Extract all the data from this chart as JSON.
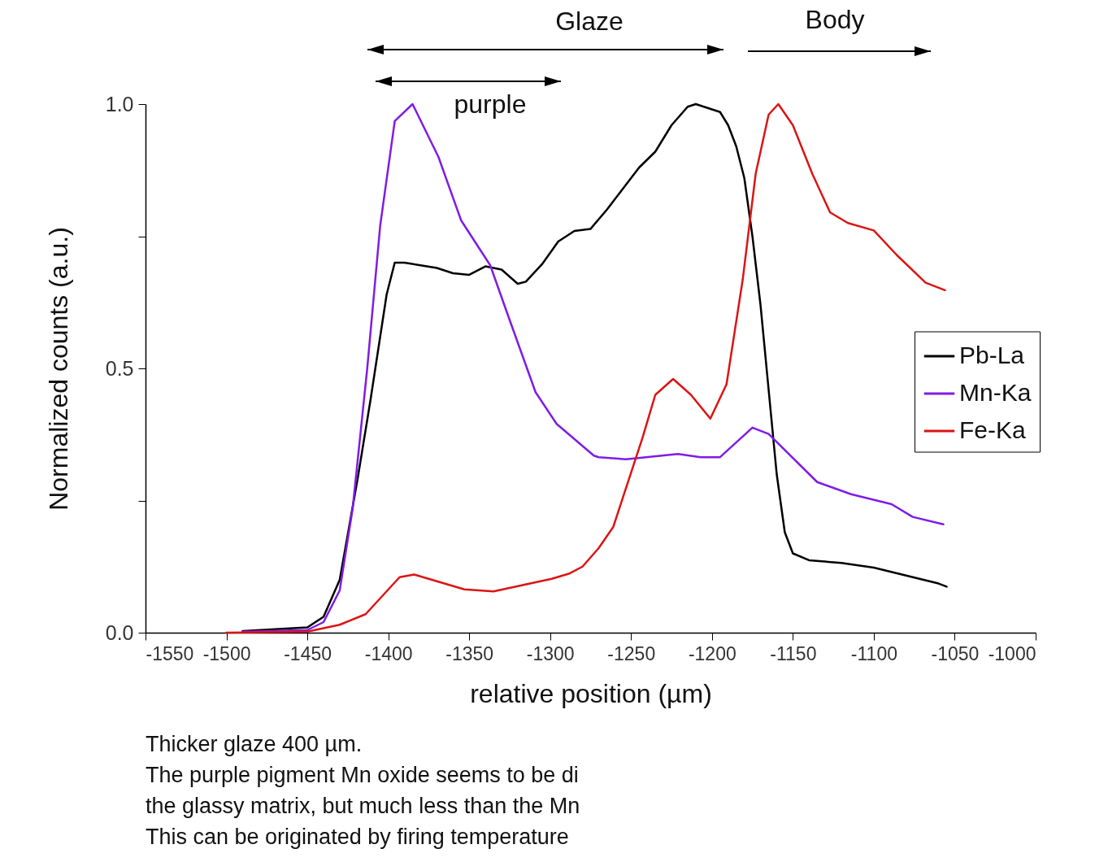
{
  "chart_data": {
    "type": "line",
    "xlabel": "relative position (µm)",
    "ylabel": "Normalized counts (a.u.)",
    "xlim": [
      -1550,
      -1000
    ],
    "ylim": [
      0,
      1
    ],
    "xticks": [
      -1550,
      -1500,
      -1450,
      -1400,
      -1350,
      -1300,
      -1250,
      -1200,
      -1150,
      -1100,
      -1050,
      -1000
    ],
    "yticks": [
      {
        "value": 0,
        "label": "0.0"
      },
      {
        "value": 0.25,
        "label": null
      },
      {
        "value": 0.5,
        "label": "0.5"
      },
      {
        "value": 0.75,
        "label": null
      },
      {
        "value": 1,
        "label": "1.0"
      }
    ],
    "grid": false,
    "legend": "right",
    "marker": "none",
    "line_style": "solid",
    "annotations": [
      "Glaze",
      "Body",
      "purple",
      "Thicker glaze 400 µm.",
      "The purple pigment Mn oxide seems to be di",
      "the glassy matrix, but much less than the Mn",
      "This can be originated by firing temperature"
    ],
    "series": [
      {
        "name": "Pb-La",
        "color": "#000000",
        "x": [
          -1490,
          -1450,
          -1440,
          -1430,
          -1419,
          -1411,
          -1406,
          -1401,
          -1396,
          -1390,
          -1370,
          -1360,
          -1350,
          -1340,
          -1330,
          -1320,
          -1315,
          -1305,
          -1295,
          -1285,
          -1275,
          -1265,
          -1255,
          -1245,
          -1235,
          -1225,
          -1215,
          -1210,
          -1205,
          -1200,
          -1195,
          -1190,
          -1185,
          -1180,
          -1175,
          -1170,
          -1165,
          -1160,
          -1155,
          -1150,
          -1140,
          -1120,
          -1100,
          -1080,
          -1060,
          -1055
        ],
        "values": [
          0.003,
          0.01,
          0.03,
          0.1,
          0.29,
          0.44,
          0.54,
          0.64,
          0.7,
          0.7,
          0.69,
          0.68,
          0.677,
          0.693,
          0.687,
          0.66,
          0.664,
          0.697,
          0.74,
          0.76,
          0.764,
          0.8,
          0.84,
          0.88,
          0.91,
          0.96,
          0.995,
          1.0,
          0.995,
          0.99,
          0.985,
          0.96,
          0.92,
          0.86,
          0.75,
          0.62,
          0.46,
          0.3,
          0.19,
          0.15,
          0.137,
          0.132,
          0.123,
          0.108,
          0.093,
          0.087
        ]
      },
      {
        "name": "Mn-Ka",
        "color": "#7f1ce6",
        "x": [
          -1490,
          -1450,
          -1440,
          -1430,
          -1422,
          -1413,
          -1405,
          -1396,
          -1385,
          -1369,
          -1355,
          -1337,
          -1326,
          -1309,
          -1296,
          -1273,
          -1270,
          -1253,
          -1221,
          -1207,
          -1195,
          -1175,
          -1165,
          -1135,
          -1114,
          -1089,
          -1076,
          -1057
        ],
        "values": [
          0.002,
          0.005,
          0.02,
          0.08,
          0.235,
          0.5,
          0.77,
          0.968,
          1.0,
          0.9,
          0.78,
          0.695,
          0.6,
          0.455,
          0.395,
          0.335,
          0.332,
          0.328,
          0.338,
          0.332,
          0.332,
          0.388,
          0.376,
          0.285,
          0.262,
          0.243,
          0.219,
          0.205
        ]
      },
      {
        "name": "Fe-Ka",
        "color": "#dc1414",
        "x": [
          -1500,
          -1450,
          -1430,
          -1414,
          -1393,
          -1384,
          -1353,
          -1335,
          -1299,
          -1288,
          -1280,
          -1270,
          -1261,
          -1243,
          -1235,
          -1224,
          -1213,
          -1201,
          -1191,
          -1181,
          -1173,
          -1165,
          -1159,
          -1150,
          -1138,
          -1127,
          -1116,
          -1100,
          -1086,
          -1068,
          -1056
        ],
        "values": [
          0,
          0.002,
          0.015,
          0.035,
          0.105,
          0.11,
          0.082,
          0.078,
          0.102,
          0.112,
          0.125,
          0.16,
          0.2,
          0.368,
          0.45,
          0.48,
          0.45,
          0.405,
          0.47,
          0.668,
          0.868,
          0.98,
          1.0,
          0.96,
          0.868,
          0.795,
          0.775,
          0.761,
          0.715,
          0.662,
          0.648
        ]
      }
    ]
  }
}
